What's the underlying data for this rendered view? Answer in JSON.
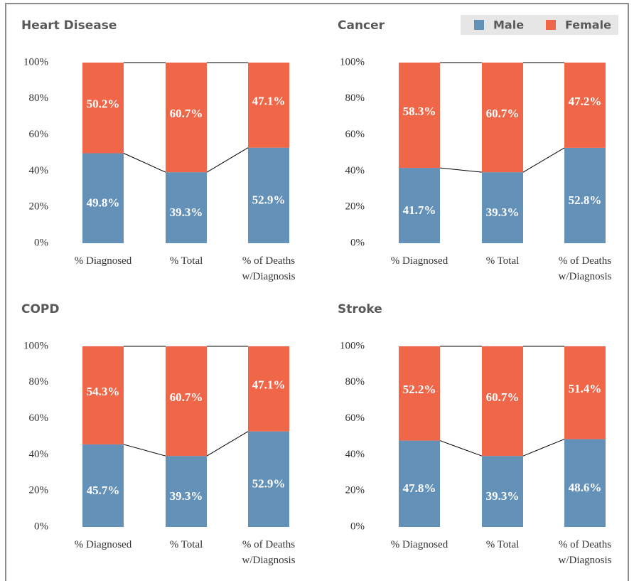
{
  "legend": {
    "series": [
      {
        "name": "Male",
        "color": "#6491b8"
      },
      {
        "name": "Female",
        "color": "#ef6649"
      }
    ]
  },
  "chart_data": [
    {
      "type": "bar",
      "stacked": true,
      "title": "Heart Disease",
      "categories": [
        "% Diagnosed",
        "% Total",
        "% of Deaths w/Diagnosis"
      ],
      "series": [
        {
          "values": [
            49.8,
            39.3,
            52.9
          ],
          "value_labels": [
            "49.8%",
            "39.3%",
            "52.9%"
          ]
        },
        {
          "values": [
            50.2,
            60.7,
            47.1
          ],
          "value_labels": [
            "50.2%",
            "60.7%",
            "47.1%"
          ]
        }
      ],
      "ylim": [
        0,
        100
      ],
      "yticks": [
        {
          "value": 0,
          "label": "0%"
        },
        {
          "value": 20,
          "label": "20%"
        },
        {
          "value": 40,
          "label": "40%"
        },
        {
          "value": 60,
          "label": "60%"
        },
        {
          "value": 80,
          "label": "80%"
        },
        {
          "value": 100,
          "label": "100%"
        }
      ]
    },
    {
      "type": "bar",
      "stacked": true,
      "title": "Cancer",
      "categories": [
        "% Diagnosed",
        "% Total",
        "% of Deaths w/Diagnosis"
      ],
      "series": [
        {
          "values": [
            41.7,
            39.3,
            52.8
          ],
          "value_labels": [
            "41.7%",
            "39.3%",
            "52.8%"
          ]
        },
        {
          "values": [
            58.3,
            60.7,
            47.2
          ],
          "value_labels": [
            "58.3%",
            "60.7%",
            "47.2%"
          ]
        }
      ],
      "ylim": [
        0,
        100
      ],
      "yticks": [
        {
          "value": 0,
          "label": "0%"
        },
        {
          "value": 20,
          "label": "20%"
        },
        {
          "value": 40,
          "label": "40%"
        },
        {
          "value": 60,
          "label": "60%"
        },
        {
          "value": 80,
          "label": "80%"
        },
        {
          "value": 100,
          "label": "100%"
        }
      ]
    },
    {
      "type": "bar",
      "stacked": true,
      "title": "COPD",
      "categories": [
        "% Diagnosed",
        "% Total",
        "% of Deaths w/Diagnosis"
      ],
      "series": [
        {
          "values": [
            45.7,
            39.3,
            52.9
          ],
          "value_labels": [
            "45.7%",
            "39.3%",
            "52.9%"
          ]
        },
        {
          "values": [
            54.3,
            60.7,
            47.1
          ],
          "value_labels": [
            "54.3%",
            "60.7%",
            "47.1%"
          ]
        }
      ],
      "ylim": [
        0,
        100
      ],
      "yticks": [
        {
          "value": 0,
          "label": "0%"
        },
        {
          "value": 20,
          "label": "20%"
        },
        {
          "value": 40,
          "label": "40%"
        },
        {
          "value": 60,
          "label": "60%"
        },
        {
          "value": 80,
          "label": "80%"
        },
        {
          "value": 100,
          "label": "100%"
        }
      ]
    },
    {
      "type": "bar",
      "stacked": true,
      "title": "Stroke",
      "categories": [
        "% Diagnosed",
        "% Total",
        "% of Deaths w/Diagnosis"
      ],
      "series": [
        {
          "values": [
            47.8,
            39.3,
            48.6
          ],
          "value_labels": [
            "47.8%",
            "39.3%",
            "48.6%"
          ]
        },
        {
          "values": [
            52.2,
            60.7,
            51.4
          ],
          "value_labels": [
            "52.2%",
            "60.7%",
            "51.4%"
          ]
        }
      ],
      "ylim": [
        0,
        100
      ],
      "yticks": [
        {
          "value": 0,
          "label": "0%"
        },
        {
          "value": 20,
          "label": "20%"
        },
        {
          "value": 40,
          "label": "40%"
        },
        {
          "value": 60,
          "label": "60%"
        },
        {
          "value": 80,
          "label": "80%"
        },
        {
          "value": 100,
          "label": "100%"
        }
      ]
    }
  ]
}
